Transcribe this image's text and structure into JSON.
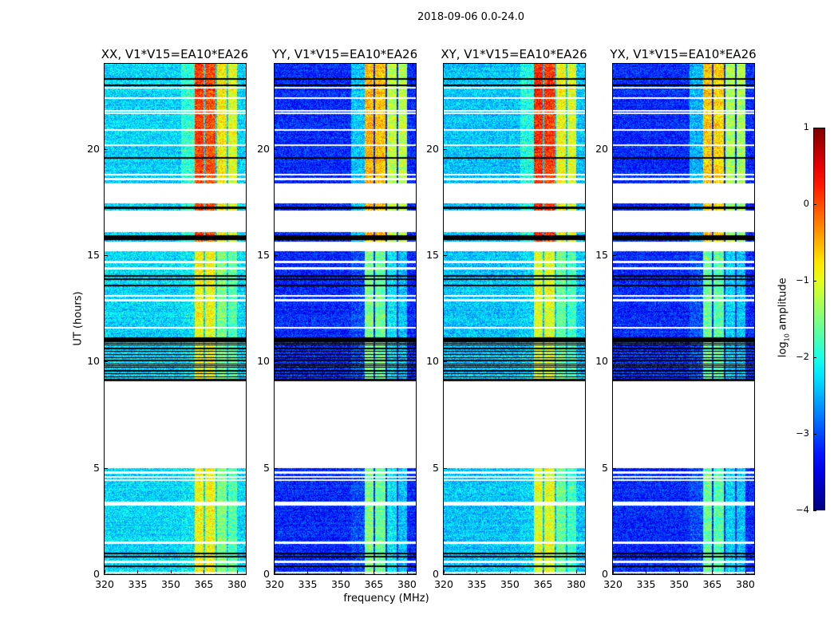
{
  "chart_data": {
    "type": "heatmap",
    "title": "2018-09-06 0.0-24.0",
    "xlabel": "frequency (MHz)",
    "ylabel": "UT (hours)",
    "xlim": [
      320,
      384
    ],
    "ylim": [
      0,
      24
    ],
    "xticks": [
      "320",
      "335",
      "350",
      "365",
      "380"
    ],
    "xtick_values": [
      320,
      335,
      350,
      365,
      380
    ],
    "yticks": [
      "0",
      "5",
      "10",
      "15",
      "20"
    ],
    "ytick_values": [
      0,
      5,
      10,
      15,
      20
    ],
    "colorbar": {
      "label_main": "log",
      "label_sub": "10",
      "label_rest": " amplitude",
      "range": [
        -4,
        1
      ],
      "ticks": [
        "1",
        "0",
        "−1",
        "−2",
        "−3",
        "−4"
      ],
      "tick_values": [
        1,
        0,
        -1,
        -2,
        -3,
        -4
      ],
      "colormap": "jet"
    },
    "flagged_white_hours": [
      [
        5.0,
        9.1
      ],
      [
        15.2,
        15.65
      ],
      [
        16.1,
        17.1
      ],
      [
        17.45,
        18.4
      ]
    ],
    "flagged_black_hours": [
      [
        15.75,
        15.95
      ],
      [
        17.2,
        17.3
      ],
      [
        9.1,
        9.2
      ],
      [
        10.95,
        11.05
      ]
    ],
    "black_lines_hours": [
      23.3,
      23.0,
      19.6,
      14.05,
      13.9,
      13.6,
      11.1,
      1.0,
      0.85,
      0.4
    ],
    "white_lines_hours": [
      22.4,
      22.9,
      21.8,
      21.7,
      20.9,
      20.2,
      18.8,
      18.6,
      14.7,
      14.4,
      13.1,
      12.9,
      11.6,
      4.8,
      4.6,
      4.45,
      3.4,
      3.3,
      1.5,
      0.6,
      0.1
    ],
    "striped_black_region_hours": [
      9.2,
      11.0
    ],
    "panels": [
      {
        "title": "XX, V1*V15=EA10*EA26",
        "background": -2.3,
        "bands": [
          {
            "f": [
              354.7,
              360.5
            ],
            "upper": -1.9,
            "lower": -2.2
          },
          {
            "f": [
              360.5,
              364.8
            ],
            "upper": 0.1,
            "lower": -0.9
          },
          {
            "f": [
              365.4,
              370.2
            ],
            "upper": 0.0,
            "lower": -0.9
          },
          {
            "f": [
              370.9,
              375.1
            ],
            "upper": -0.8,
            "lower": -1.5
          },
          {
            "f": [
              375.7,
              379.9
            ],
            "upper": -1.0,
            "lower": -1.7
          }
        ]
      },
      {
        "title": "YY, V1*V15=EA10*EA26",
        "background": -3.2,
        "bands": [
          {
            "f": [
              354.7,
              360.5
            ],
            "upper": -2.4,
            "lower": -3.0
          },
          {
            "f": [
              360.5,
              364.8
            ],
            "upper": -0.5,
            "lower": -1.5
          },
          {
            "f": [
              365.4,
              370.2
            ],
            "upper": -0.6,
            "lower": -1.6
          },
          {
            "f": [
              370.9,
              375.1
            ],
            "upper": -1.2,
            "lower": -2.2
          },
          {
            "f": [
              375.7,
              379.9
            ],
            "upper": -1.2,
            "lower": -2.4
          }
        ]
      },
      {
        "title": "XY, V1*V15=EA10*EA26",
        "background": -2.4,
        "bands": [
          {
            "f": [
              354.7,
              360.5
            ],
            "upper": -2.0,
            "lower": -2.3
          },
          {
            "f": [
              360.5,
              364.8
            ],
            "upper": 0.2,
            "lower": -1.0
          },
          {
            "f": [
              365.4,
              370.2
            ],
            "upper": 0.1,
            "lower": -1.0
          },
          {
            "f": [
              370.9,
              375.1
            ],
            "upper": -0.9,
            "lower": -1.6
          },
          {
            "f": [
              375.7,
              379.9
            ],
            "upper": -1.0,
            "lower": -1.8
          }
        ]
      },
      {
        "title": "YX, V1*V15=EA10*EA26",
        "background": -3.2,
        "bands": [
          {
            "f": [
              354.7,
              360.5
            ],
            "upper": -2.5,
            "lower": -3.0
          },
          {
            "f": [
              360.5,
              364.8
            ],
            "upper": -0.6,
            "lower": -1.6
          },
          {
            "f": [
              365.4,
              370.2
            ],
            "upper": -0.7,
            "lower": -1.7
          },
          {
            "f": [
              370.9,
              375.1
            ],
            "upper": -1.3,
            "lower": -2.3
          },
          {
            "f": [
              375.7,
              379.9
            ],
            "upper": -1.3,
            "lower": -2.4
          }
        ]
      }
    ]
  }
}
